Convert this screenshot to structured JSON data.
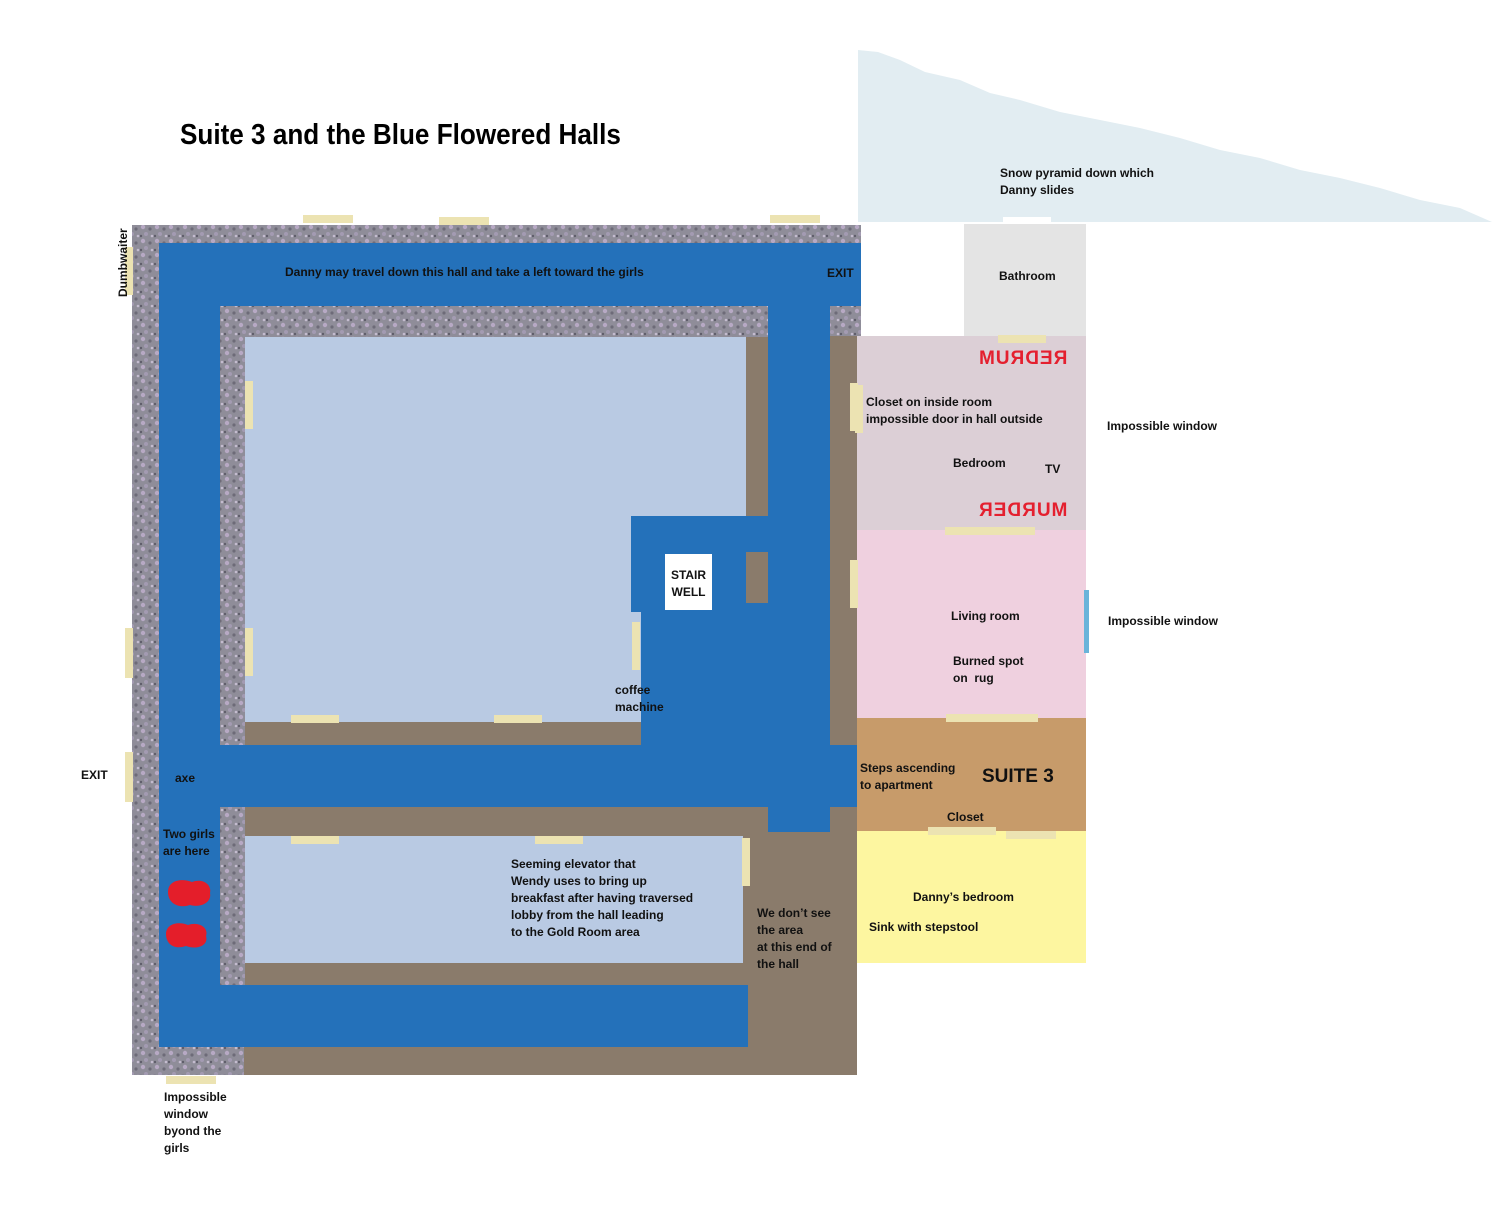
{
  "title": "Suite 3 and the Blue Flowered Halls",
  "labels": {
    "snow_pyramid": "Snow pyramid down which\nDanny slides",
    "bathroom": "Bathroom",
    "redrum": "REDRUM",
    "murder": "MURDER",
    "closet_inside": "Closet on inside room\nimpossible door in hall outside",
    "bedroom": "Bedroom",
    "tv": "TV",
    "impossible_window_1": "Impossible window",
    "impossible_window_2": "Impossible window",
    "living_room": "Living room",
    "burned_spot": "Burned spot\non  rug",
    "steps": "Steps ascending\nto apartment",
    "suite3": "SUITE 3",
    "closet": "Closet",
    "dannys_bedroom": "Danny’s bedroom",
    "sink": "Sink with stepstool",
    "hall_note": "Danny may travel down this hall and take a left toward the girls",
    "exit_top": "EXIT",
    "exit_left": "EXIT",
    "dumbwaiter": "Dumbwaiter",
    "stairwell": "STAIR\nWELL",
    "coffee": "coffee\nmachine",
    "axe": "axe",
    "two_girls": "Two girls\nare here",
    "elevator": "Seeming elevator that\nWendy uses to bring up\nbreakfast after having traversed\nlobby from the hall leading\nto the Gold Room area",
    "unseen_area": "We don’t see\nthe area\nat this end of\nthe hall",
    "impossible_window_girls": "Impossible\nwindow\nbyond the\ngirls"
  },
  "colors": {
    "hall_blue": "#2471ba",
    "room_light_blue": "#b9cae3",
    "floor_brown": "#8a7b6b",
    "wallpaper": "#8d8b97",
    "bathroom": "#e4e4e4",
    "bedroom": "#dccfd6",
    "living_room": "#efd0df",
    "suite3": "#c79b6a",
    "dannys_bedroom": "#fdf6a0",
    "snow": "#e2edf2",
    "door": "#ece3b2",
    "blood": "#e41e2a",
    "murder_red": "#e4202f",
    "window_blue": "#6ab4da"
  }
}
